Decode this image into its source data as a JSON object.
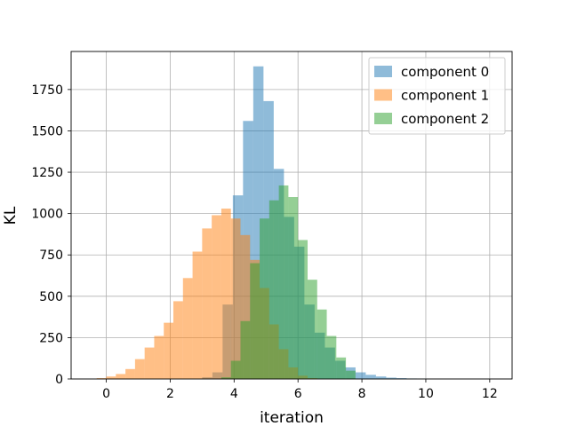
{
  "chart_data": {
    "type": "bar",
    "subtype": "histogram",
    "xlabel": "iteration",
    "ylabel": "KL",
    "xlim": [
      -1.1,
      12.7
    ],
    "ylim": [
      0,
      1980
    ],
    "x_ticks": [
      0,
      2,
      4,
      6,
      8,
      10,
      12
    ],
    "y_ticks": [
      0,
      250,
      500,
      750,
      1000,
      1250,
      1500,
      1750
    ],
    "grid": true,
    "legend_position": "top-right",
    "series": [
      {
        "name": "component 0",
        "color": "#1f77b4",
        "opacity": 0.5,
        "bin_edges": [
          3.0,
          3.32,
          3.64,
          3.96,
          4.28,
          4.6,
          4.92,
          5.24,
          5.56,
          5.88,
          6.2,
          6.52,
          6.84,
          7.16,
          7.48,
          7.8,
          8.12,
          8.44,
          8.76,
          9.08,
          9.4,
          9.72,
          10.04
        ],
        "counts": [
          10,
          40,
          450,
          1110,
          1560,
          1890,
          1680,
          1270,
          980,
          800,
          450,
          280,
          190,
          110,
          70,
          40,
          25,
          15,
          8,
          5,
          3,
          2
        ]
      },
      {
        "name": "component 1",
        "color": "#ff7f0e",
        "opacity": 0.5,
        "bin_edges": [
          -0.3,
          0.0,
          0.3,
          0.6,
          0.9,
          1.2,
          1.5,
          1.8,
          2.1,
          2.4,
          2.7,
          3.0,
          3.3,
          3.6,
          3.9,
          4.2,
          4.5,
          4.8,
          5.1,
          5.4,
          5.7,
          6.0,
          6.3,
          6.6
        ],
        "counts": [
          5,
          15,
          30,
          60,
          120,
          190,
          260,
          340,
          470,
          610,
          770,
          910,
          990,
          1030,
          970,
          870,
          720,
          550,
          330,
          180,
          70,
          20,
          5
        ]
      },
      {
        "name": "component 2",
        "color": "#2ca02c",
        "opacity": 0.5,
        "bin_edges": [
          3.6,
          3.9,
          4.2,
          4.5,
          4.8,
          5.1,
          5.4,
          5.7,
          6.0,
          6.3,
          6.6,
          6.9,
          7.2,
          7.5,
          7.8
        ],
        "counts": [
          10,
          110,
          350,
          700,
          970,
          1080,
          1170,
          1100,
          840,
          600,
          420,
          260,
          130,
          50
        ]
      }
    ]
  }
}
